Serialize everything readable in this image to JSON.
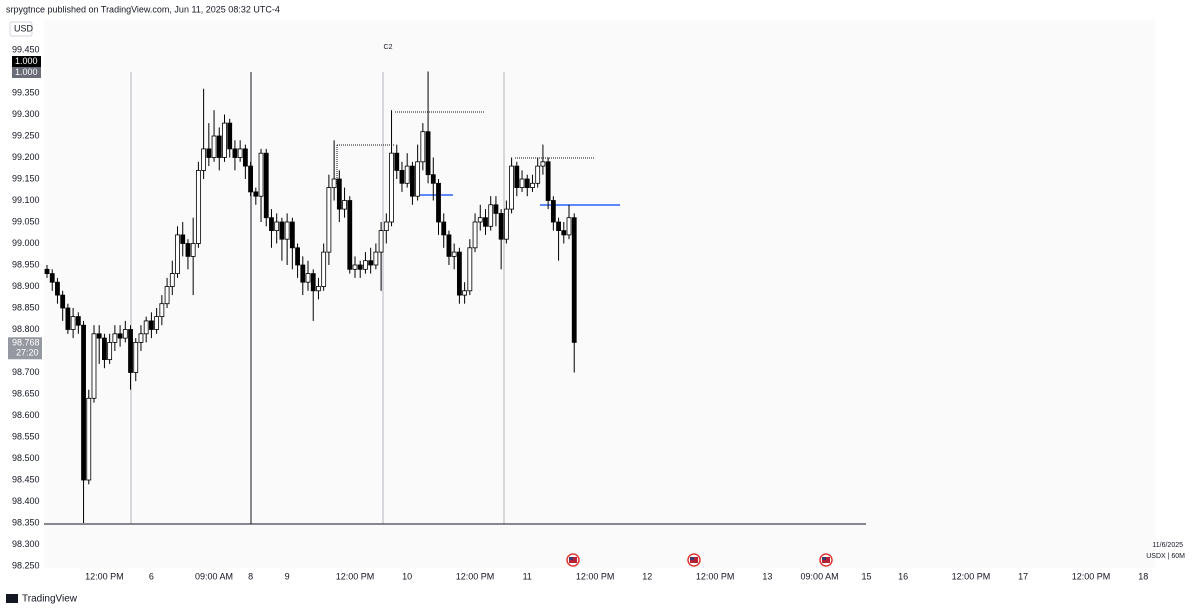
{
  "header": "srpygtnce published on TradingView.com, Jun 11, 2025 08:32 UTC-4",
  "footer": "TradingView",
  "chart_data": {
    "type": "candlestick",
    "currency": "USD",
    "scale_labels": [
      "1.000",
      "1.000"
    ],
    "price_label": {
      "value": 98.768,
      "label": "98.768"
    },
    "countdown": "27:20",
    "annotation": "C2",
    "date_label": "11/6/2025",
    "symbol": "USDX | 60M",
    "up_color": "#ffffff",
    "down_color": "#000000",
    "ylim": [
      98.25,
      99.45
    ],
    "yticks": [
      {
        "value": 99.45,
        "label": "99.450"
      },
      {
        "value": 99.35,
        "label": "99.350"
      },
      {
        "value": 99.3,
        "label": "99.300"
      },
      {
        "value": 99.25,
        "label": "99.250"
      },
      {
        "value": 99.2,
        "label": "99.200"
      },
      {
        "value": 99.15,
        "label": "99.150"
      },
      {
        "value": 99.1,
        "label": "99.100"
      },
      {
        "value": 99.05,
        "label": "99.050"
      },
      {
        "value": 99,
        "label": "99.000"
      },
      {
        "value": 98.95,
        "label": "98.950"
      },
      {
        "value": 98.9,
        "label": "98.900"
      },
      {
        "value": 98.85,
        "label": "98.850"
      },
      {
        "value": 98.8,
        "label": "98.800"
      },
      {
        "value": 98.7,
        "label": "98.700"
      },
      {
        "value": 98.65,
        "label": "98.650"
      },
      {
        "value": 98.6,
        "label": "98.600"
      },
      {
        "value": 98.55,
        "label": "98.550"
      },
      {
        "value": 98.5,
        "label": "98.500"
      },
      {
        "value": 98.45,
        "label": "98.450"
      },
      {
        "value": 98.4,
        "label": "98.400"
      },
      {
        "value": 98.35,
        "label": "98.350"
      },
      {
        "value": 98.3,
        "label": "98.300"
      },
      {
        "value": 98.25,
        "label": "98.250"
      }
    ],
    "categories": [
      null,
      null,
      null,
      null,
      null,
      null,
      null,
      null,
      null,
      null,
      null,
      "12:00 PM",
      null,
      null,
      null,
      null,
      null,
      null,
      null,
      null,
      "6",
      null,
      null,
      null,
      null,
      null,
      null,
      null,
      null,
      null,
      null,
      null,
      "09:00 AM",
      null,
      null,
      null,
      null,
      null,
      null,
      "8",
      null,
      null,
      null,
      null,
      null,
      null,
      "9",
      null,
      null,
      null,
      null,
      null,
      null,
      null,
      null,
      null,
      null,
      null,
      null,
      "12:00 PM",
      null,
      null,
      null,
      null,
      null,
      null,
      null,
      null,
      null,
      "10",
      null,
      null,
      null,
      null,
      null,
      null,
      null,
      null,
      null,
      null,
      null,
      null,
      "12:00 PM",
      null,
      null,
      null,
      null,
      null,
      null,
      null,
      null,
      null,
      "11",
      null,
      null,
      null,
      null,
      null,
      null,
      null,
      null,
      null,
      null,
      null,
      null,
      "12:00 PM",
      null,
      null,
      null,
      null,
      null,
      null,
      null,
      null,
      null,
      "12",
      null,
      null,
      null,
      null,
      null,
      null,
      null,
      null,
      null,
      null,
      null,
      null,
      "12:00 PM",
      null,
      null,
      null,
      null,
      null,
      null,
      null,
      null,
      null,
      "13",
      null,
      null,
      null,
      null,
      null,
      null,
      null,
      null,
      null,
      "09:00 AM",
      null,
      null,
      null,
      null,
      null,
      null,
      null,
      null,
      "15",
      null,
      null,
      null,
      null,
      null,
      null,
      "16",
      null,
      null,
      null,
      null,
      null,
      null,
      null,
      null,
      null,
      null,
      null,
      null,
      "12:00 PM",
      null,
      null,
      null,
      null,
      null,
      null,
      null,
      null,
      null,
      "17",
      null,
      null,
      null,
      null,
      null,
      null,
      null,
      null,
      null,
      null,
      null,
      null,
      "12:00 PM",
      null,
      null,
      null,
      null,
      null,
      null,
      null,
      null,
      null,
      "18",
      null
    ],
    "open": [
      98.94,
      98.93,
      98.91,
      98.88,
      98.85,
      98.8,
      98.83,
      98.81,
      98.45,
      98.64,
      98.79,
      98.78,
      98.73,
      98.77,
      98.79,
      98.78,
      98.8,
      98.7,
      98.77,
      98.79,
      98.82,
      98.8,
      98.83,
      98.86,
      98.9,
      98.93,
      99.02,
      99.0,
      98.97,
      99.0,
      99.17,
      99.22,
      99.2,
      99.25,
      99.2,
      99.28,
      99.22,
      99.2,
      99.22,
      99.18,
      99.12,
      99.11,
      99.21,
      99.06,
      99.03,
      99.05,
      99.01,
      99.05,
      98.99,
      98.95,
      98.91,
      98.93,
      98.89,
      98.9,
      98.98,
      99.13,
      99.15,
      99.08,
      99.1,
      98.94,
      98.95,
      98.94,
      98.96,
      98.95,
      98.98,
      99.03,
      99.05,
      99.21,
      99.17,
      99.14,
      99.18,
      99.11,
      99.19,
      99.26,
      99.16,
      99.14,
      99.05,
      99.02,
      98.97,
      98.98,
      98.88,
      98.89,
      98.99,
      99.05,
      99.06,
      99.04,
      99.09,
      99.07,
      99.01,
      99.08,
      99.18,
      99.13,
      99.15,
      99.13,
      99.14,
      99.18,
      99.19,
      99.1,
      99.05,
      99.03,
      99.02,
      99.06,
      null,
      null,
      null,
      null,
      null,
      null,
      null,
      null,
      null,
      null,
      null,
      null,
      null,
      null,
      null,
      null,
      null,
      null,
      null,
      null,
      null,
      null,
      null,
      null,
      null,
      null,
      null,
      null,
      null,
      null,
      null,
      null,
      null,
      null,
      null,
      null,
      null,
      null,
      null,
      null,
      null,
      null,
      null,
      null,
      null,
      null,
      null,
      null,
      null,
      null,
      null,
      null,
      null,
      null,
      null,
      null,
      null,
      null,
      null,
      null,
      null,
      null,
      null,
      null,
      null,
      null,
      null,
      null,
      null,
      null,
      null,
      null,
      null,
      null,
      null,
      null,
      null,
      null,
      null,
      null,
      null,
      null,
      null,
      null,
      null,
      null,
      null,
      null,
      null,
      null,
      null,
      null,
      null,
      null,
      null,
      null,
      null,
      null,
      null,
      null,
      null,
      null,
      null,
      null,
      null,
      null,
      null,
      null,
      null,
      null
    ],
    "high": [
      98.95,
      98.94,
      98.92,
      98.89,
      98.86,
      98.85,
      98.84,
      98.82,
      98.66,
      98.81,
      98.81,
      98.79,
      98.79,
      98.81,
      98.81,
      98.82,
      98.81,
      98.78,
      98.81,
      98.83,
      98.84,
      98.85,
      98.88,
      98.92,
      98.96,
      99.04,
      99.05,
      99.01,
      99.06,
      99.19,
      99.36,
      99.28,
      99.31,
      99.27,
      99.3,
      99.29,
      99.24,
      99.24,
      99.23,
      99.19,
      99.13,
      99.22,
      99.22,
      99.08,
      99.07,
      99.06,
      99.07,
      99.06,
      99.0,
      98.97,
      98.96,
      98.94,
      98.92,
      99.0,
      99.16,
      99.24,
      99.17,
      99.13,
      99.11,
      98.97,
      98.96,
      98.98,
      98.99,
      99.0,
      99.05,
      99.07,
      99.31,
      99.23,
      99.19,
      99.21,
      99.19,
      99.23,
      99.28,
      99.4,
      99.2,
      99.15,
      99.07,
      99.03,
      99.0,
      98.99,
      98.91,
      99.01,
      99.07,
      99.09,
      99.08,
      99.11,
      99.11,
      99.08,
      99.1,
      99.2,
      99.19,
      99.17,
      99.16,
      99.16,
      99.2,
      99.23,
      99.2,
      99.11,
      99.06,
      99.05,
      99.09,
      99.07,
      null,
      null,
      null,
      null,
      null,
      null,
      null,
      null,
      null,
      null,
      null,
      null,
      null,
      null,
      null,
      null,
      null,
      null,
      null,
      null,
      null,
      null,
      null,
      null,
      null,
      null,
      null,
      null,
      null,
      null,
      null,
      null,
      null,
      null,
      null,
      null,
      null,
      null,
      null,
      null,
      null,
      null,
      null,
      null,
      null,
      null,
      null,
      null,
      null,
      null,
      null,
      null,
      null,
      null,
      null,
      null,
      null,
      null,
      null,
      null,
      null,
      null,
      null,
      null,
      null,
      null,
      null,
      null,
      null,
      null,
      null,
      null,
      null,
      null,
      null,
      null,
      null,
      null,
      null,
      null,
      null,
      null,
      null,
      null,
      null,
      null,
      null,
      null,
      null,
      null,
      null,
      null,
      null,
      null,
      null,
      null,
      null,
      null,
      null,
      null,
      null,
      null,
      null,
      null,
      null,
      null,
      null,
      null,
      null,
      null
    ],
    "low": [
      98.92,
      98.89,
      98.86,
      98.82,
      98.79,
      98.78,
      98.79,
      98.35,
      98.44,
      98.63,
      98.72,
      98.71,
      98.72,
      98.75,
      98.76,
      98.77,
      98.66,
      98.68,
      98.75,
      98.77,
      98.78,
      98.79,
      98.81,
      98.85,
      98.88,
      98.92,
      98.97,
      98.94,
      98.88,
      98.99,
      99.15,
      99.18,
      99.19,
      99.17,
      99.19,
      99.2,
      99.17,
      99.19,
      99.15,
      99.11,
      99.09,
      99.05,
      99.04,
      98.99,
      99.0,
      98.96,
      98.95,
      98.94,
      98.92,
      98.88,
      98.89,
      98.82,
      98.87,
      98.89,
      98.95,
      99.1,
      99.05,
      99.06,
      98.93,
      98.92,
      98.92,
      98.93,
      98.93,
      98.94,
      98.89,
      99.0,
      99.04,
      99.15,
      99.12,
      99.13,
      99.09,
      99.1,
      99.17,
      99.14,
      99.1,
      99.02,
      98.99,
      98.95,
      98.94,
      98.86,
      98.86,
      98.88,
      98.98,
      99.03,
      99.02,
      99.03,
      99.04,
      98.94,
      99.0,
      99.07,
      99.11,
      99.12,
      99.11,
      99.12,
      99.13,
      99.16,
      99.08,
      99.03,
      98.96,
      99.0,
      99.01,
      98.7,
      null,
      null,
      null,
      null,
      null,
      null,
      null,
      null,
      null,
      null,
      null,
      null,
      null,
      null,
      null,
      null,
      null,
      null,
      null,
      null,
      null,
      null,
      null,
      null,
      null,
      null,
      null,
      null,
      null,
      null,
      null,
      null,
      null,
      null,
      null,
      null,
      null,
      null,
      null,
      null,
      null,
      null,
      null,
      null,
      null,
      null,
      null,
      null,
      null,
      null,
      null,
      null,
      null,
      null,
      null,
      null,
      null,
      null,
      null,
      null,
      null,
      null,
      null,
      null,
      null,
      null,
      null,
      null,
      null,
      null,
      null,
      null,
      null,
      null,
      null,
      null,
      null,
      null,
      null,
      null,
      null,
      null,
      null,
      null,
      null,
      null,
      null,
      null,
      null,
      null,
      null,
      null,
      null,
      null,
      null,
      null,
      null,
      null,
      null,
      null,
      null,
      null,
      null,
      null,
      null,
      null,
      null,
      null,
      null,
      null
    ],
    "close": [
      98.93,
      98.91,
      98.88,
      98.85,
      98.8,
      98.83,
      98.81,
      98.45,
      98.64,
      98.79,
      98.78,
      98.73,
      98.77,
      98.79,
      98.78,
      98.8,
      98.7,
      98.77,
      98.79,
      98.82,
      98.8,
      98.83,
      98.86,
      98.9,
      98.93,
      99.02,
      99.0,
      98.97,
      99.0,
      99.17,
      99.22,
      99.2,
      99.25,
      99.2,
      99.28,
      99.22,
      99.2,
      99.22,
      99.18,
      99.12,
      99.11,
      99.21,
      99.06,
      99.03,
      99.05,
      99.01,
      99.05,
      98.99,
      98.95,
      98.91,
      98.93,
      98.89,
      98.9,
      98.98,
      99.13,
      99.15,
      99.08,
      99.1,
      98.94,
      98.95,
      98.94,
      98.96,
      98.95,
      98.98,
      99.03,
      99.05,
      99.21,
      99.17,
      99.14,
      99.18,
      99.11,
      99.19,
      99.26,
      99.16,
      99.14,
      99.05,
      99.02,
      98.97,
      98.98,
      98.88,
      98.89,
      98.99,
      99.05,
      99.06,
      99.04,
      99.09,
      99.07,
      99.01,
      99.08,
      99.18,
      99.13,
      99.15,
      99.13,
      99.14,
      99.18,
      99.19,
      99.1,
      99.05,
      99.03,
      99.02,
      99.06,
      98.77,
      null,
      null,
      null,
      null,
      null,
      null,
      null,
      null,
      null,
      null,
      null,
      null,
      null,
      null,
      null,
      null,
      null,
      null,
      null,
      null,
      null,
      null,
      null,
      null,
      null,
      null,
      null,
      null,
      null,
      null,
      null,
      null,
      null,
      null,
      null,
      null,
      null,
      null,
      null,
      null,
      null,
      null,
      null,
      null,
      null,
      null,
      null,
      null,
      null,
      null,
      null,
      null,
      null,
      null,
      null,
      null,
      null,
      null,
      null,
      null,
      null,
      null,
      null,
      null,
      null,
      null,
      null,
      null,
      null,
      null,
      null,
      null,
      null,
      null,
      null,
      null,
      null,
      null,
      null,
      null,
      null,
      null,
      null,
      null,
      null,
      null,
      null,
      null,
      null,
      null,
      null,
      null,
      null,
      null,
      null,
      null,
      null,
      null,
      null,
      null,
      null,
      null,
      null,
      null,
      null,
      null,
      null,
      null,
      null,
      null
    ]
  }
}
